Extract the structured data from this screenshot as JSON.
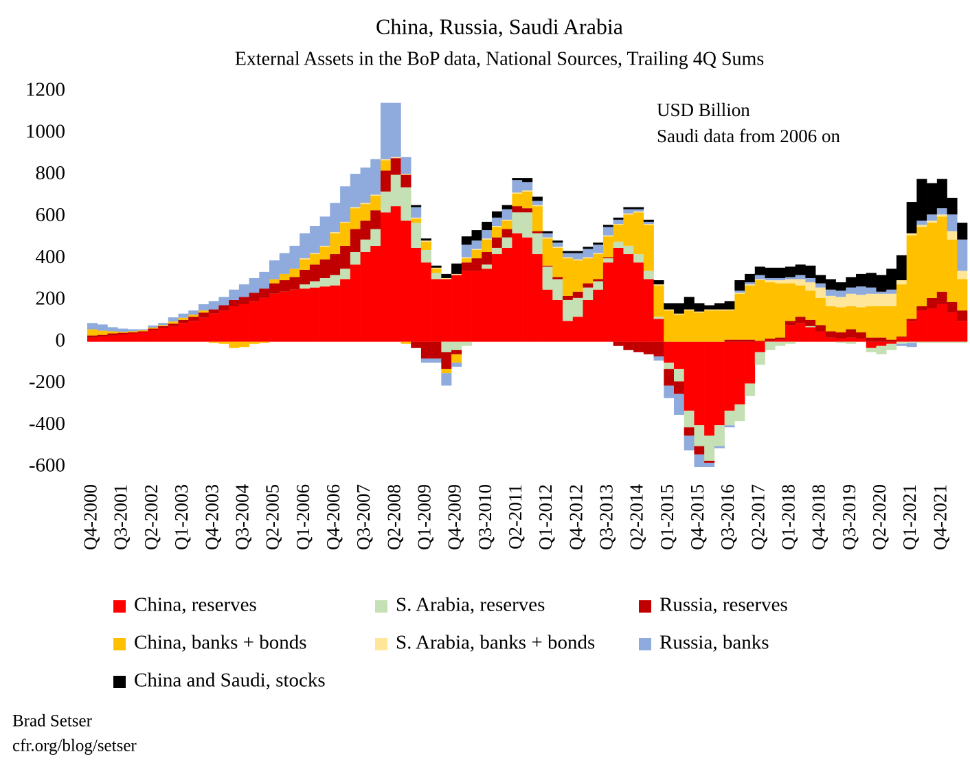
{
  "chart_data": {
    "type": "stacked-bar",
    "title": "China, Russia, Saudi Arabia",
    "subtitle": "External Assets in the BoP data, National Sources, Trailing 4Q Sums",
    "annotations": [
      "USD Billion",
      "Saudi data from 2006 on"
    ],
    "source": [
      "Brad Setser",
      "cfr.org/blog/setser"
    ],
    "ylim": [
      -600,
      1200
    ],
    "yticks": [
      -600,
      -400,
      -200,
      0,
      200,
      400,
      600,
      800,
      1000,
      1200
    ],
    "categories": [
      "Q4-2000",
      null,
      null,
      "Q3-2001",
      null,
      null,
      "Q2-2002",
      null,
      null,
      "Q1-2003",
      null,
      null,
      "Q4-2003",
      null,
      null,
      "Q3-2004",
      null,
      null,
      "Q2-2005",
      null,
      null,
      "Q1-2006",
      null,
      null,
      "Q4-2006",
      null,
      null,
      "Q3-2007",
      null,
      null,
      "Q2-2008",
      null,
      null,
      "Q1-2009",
      null,
      null,
      "Q4-2009",
      null,
      null,
      "Q3-2010",
      null,
      null,
      "Q2-2011",
      null,
      null,
      "Q1-2012",
      null,
      null,
      "Q4-2012",
      null,
      null,
      "Q3-2013",
      null,
      null,
      "Q2-2014",
      null,
      null,
      "Q1-2015",
      null,
      null,
      "Q4-2015",
      null,
      null,
      "Q3-2016",
      null,
      null,
      "Q2-2017",
      null,
      null,
      "Q1-2018",
      null,
      null,
      "Q4-2018",
      null,
      null,
      "Q3-2019",
      null,
      null,
      "Q2-2020",
      null,
      null,
      "Q1-2021",
      null,
      null,
      "Q4-2021",
      null,
      null
    ],
    "series": [
      {
        "name": "China, reserves",
        "color": "#ff0000",
        "values": [
          20,
          25,
          30,
          35,
          40,
          45,
          55,
          65,
          75,
          90,
          100,
          115,
          135,
          150,
          170,
          180,
          195,
          210,
          230,
          240,
          250,
          255,
          260,
          265,
          270,
          300,
          370,
          430,
          460,
          620,
          650,
          580,
          450,
          380,
          300,
          300,
          320,
          340,
          340,
          350,
          420,
          450,
          520,
          500,
          420,
          250,
          200,
          100,
          120,
          200,
          250,
          380,
          450,
          420,
          380,
          300,
          110,
          -100,
          -130,
          -330,
          -400,
          -450,
          -400,
          -330,
          -300,
          -200,
          -50,
          5,
          10,
          80,
          90,
          70,
          50,
          20,
          15,
          20,
          15,
          -30,
          -20,
          -10,
          20,
          100,
          150,
          160,
          180,
          140,
          100
        ]
      },
      {
        "name": "S. Arabia, reserves",
        "color": "#c5e0b4",
        "values": [
          0,
          0,
          0,
          0,
          0,
          0,
          0,
          0,
          0,
          0,
          0,
          0,
          0,
          0,
          0,
          0,
          0,
          0,
          0,
          0,
          0,
          20,
          30,
          40,
          50,
          50,
          60,
          60,
          80,
          100,
          150,
          160,
          120,
          60,
          30,
          -50,
          -40,
          -20,
          0,
          20,
          30,
          50,
          100,
          120,
          100,
          110,
          100,
          100,
          90,
          60,
          40,
          20,
          30,
          40,
          40,
          40,
          10,
          -30,
          -60,
          -80,
          -100,
          -120,
          -100,
          -70,
          -80,
          -60,
          -60,
          -40,
          -20,
          -10,
          0,
          5,
          0,
          0,
          -5,
          -10,
          0,
          -20,
          -40,
          -30,
          -10,
          -5,
          -5,
          -5,
          -5,
          -5,
          -5
        ]
      },
      {
        "name": "Russia, reserves",
        "color": "#c00000",
        "values": [
          10,
          8,
          10,
          8,
          5,
          5,
          8,
          10,
          12,
          15,
          20,
          25,
          20,
          25,
          30,
          35,
          40,
          45,
          50,
          55,
          60,
          70,
          80,
          90,
          100,
          110,
          110,
          90,
          90,
          100,
          80,
          60,
          -30,
          -80,
          -80,
          -80,
          -20,
          40,
          60,
          60,
          50,
          40,
          30,
          20,
          10,
          5,
          10,
          20,
          30,
          20,
          10,
          5,
          -20,
          -40,
          -50,
          -60,
          -70,
          -80,
          -60,
          -40,
          -40,
          -10,
          0,
          10,
          10,
          10,
          5,
          10,
          10,
          20,
          30,
          30,
          30,
          30,
          30,
          40,
          30,
          20,
          20,
          10,
          5,
          10,
          20,
          50,
          60,
          50,
          50
        ]
      },
      {
        "name": "China, banks + bonds",
        "color": "#ffc000",
        "values": [
          30,
          20,
          10,
          5,
          5,
          5,
          5,
          5,
          10,
          10,
          10,
          10,
          -5,
          -10,
          -30,
          -25,
          -10,
          -5,
          20,
          30,
          40,
          50,
          50,
          60,
          100,
          110,
          100,
          80,
          70,
          50,
          0,
          -10,
          20,
          40,
          20,
          -20,
          -40,
          20,
          40,
          60,
          50,
          40,
          60,
          80,
          120,
          130,
          140,
          180,
          150,
          120,
          120,
          100,
          80,
          150,
          200,
          220,
          150,
          150,
          130,
          150,
          140,
          150,
          150,
          140,
          220,
          260,
          290,
          270,
          260,
          180,
          150,
          140,
          130,
          120,
          120,
          110,
          120,
          150,
          150,
          160,
          250,
          400,
          380,
          360,
          360,
          300,
          150
        ]
      },
      {
        "name": "S. Arabia, banks + bonds",
        "color": "#ffe699",
        "values": [
          0,
          0,
          0,
          0,
          0,
          0,
          0,
          0,
          0,
          0,
          0,
          0,
          0,
          0,
          0,
          0,
          0,
          0,
          0,
          0,
          0,
          5,
          5,
          5,
          5,
          5,
          5,
          5,
          5,
          5,
          5,
          5,
          5,
          5,
          5,
          5,
          5,
          5,
          5,
          5,
          5,
          5,
          5,
          5,
          5,
          5,
          5,
          5,
          5,
          5,
          5,
          5,
          5,
          5,
          5,
          5,
          5,
          5,
          5,
          5,
          5,
          5,
          5,
          5,
          5,
          5,
          5,
          10,
          15,
          20,
          30,
          40,
          50,
          50,
          50,
          60,
          60,
          60,
          60,
          60,
          20,
          10,
          10,
          10,
          10,
          40,
          40
        ]
      },
      {
        "name": "Russia, banks",
        "color": "#8faadc",
        "values": [
          30,
          30,
          20,
          15,
          10,
          5,
          10,
          10,
          20,
          20,
          20,
          30,
          40,
          40,
          50,
          60,
          70,
          80,
          90,
          100,
          110,
          120,
          130,
          140,
          140,
          170,
          160,
          170,
          170,
          270,
          260,
          80,
          50,
          -20,
          -20,
          -60,
          -20,
          60,
          40,
          40,
          40,
          50,
          60,
          40,
          20,
          20,
          20,
          20,
          30,
          40,
          40,
          40,
          20,
          20,
          10,
          10,
          -20,
          -60,
          -100,
          -70,
          -60,
          -20,
          -10,
          -10,
          10,
          10,
          20,
          10,
          10,
          10,
          20,
          20,
          20,
          30,
          30,
          30,
          40,
          30,
          10,
          20,
          -10,
          -20,
          20,
          30,
          30,
          80,
          150
        ]
      },
      {
        "name": "China and Saudi, stocks",
        "color": "#000000",
        "values": [
          0,
          0,
          0,
          0,
          0,
          0,
          0,
          0,
          0,
          0,
          0,
          0,
          0,
          0,
          0,
          0,
          0,
          0,
          0,
          0,
          0,
          0,
          0,
          0,
          0,
          0,
          0,
          0,
          0,
          0,
          0,
          0,
          10,
          10,
          10,
          20,
          50,
          40,
          50,
          40,
          30,
          20,
          10,
          20,
          20,
          10,
          10,
          10,
          10,
          10,
          10,
          10,
          10,
          10,
          10,
          10,
          20,
          30,
          50,
          60,
          40,
          20,
          30,
          40,
          50,
          40,
          40,
          50,
          50,
          50,
          50,
          60,
          40,
          50,
          40,
          50,
          60,
          70,
          80,
          100,
          120,
          150,
          200,
          150,
          140,
          80,
          80
        ]
      }
    ]
  }
}
